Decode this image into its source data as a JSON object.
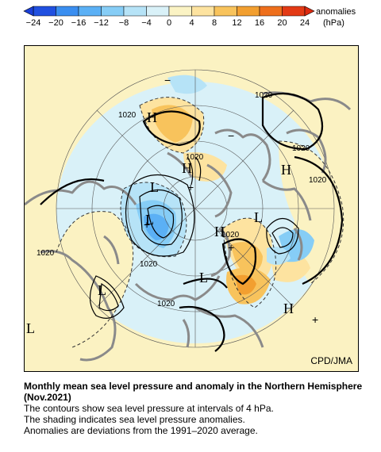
{
  "colorbar": {
    "ticks": [
      "−24",
      "−20",
      "−16",
      "−12",
      "−8",
      "−4",
      "0",
      "4",
      "8",
      "12",
      "16",
      "20",
      "24"
    ],
    "unit_line1": "anomalies",
    "unit_line2": "(hPa)",
    "colors": [
      "#2050e0",
      "#3a8ef0",
      "#5bb0f5",
      "#86cdf6",
      "#b6e3f7",
      "#d9f1f8",
      "#fbf3c4",
      "#fde3a0",
      "#f8c35c",
      "#f29f30",
      "#ee6f1c",
      "#e33a15"
    ]
  },
  "map": {
    "isobar_label": "1020",
    "high_label": "H",
    "low_label": "L",
    "plus_mark": "+",
    "minus_mark": "−",
    "credit": "CPD/JMA"
  },
  "caption": {
    "title": "Monthly mean sea level pressure and anomaly in the Northern Hemisphere (Nov.2021)",
    "line1": "The contours show sea level pressure at intervals of 4 hPa.",
    "line2": "The shading indicates sea level pressure anomalies.",
    "line3": "Anomalies are deviations from the 1991–2020 average."
  }
}
